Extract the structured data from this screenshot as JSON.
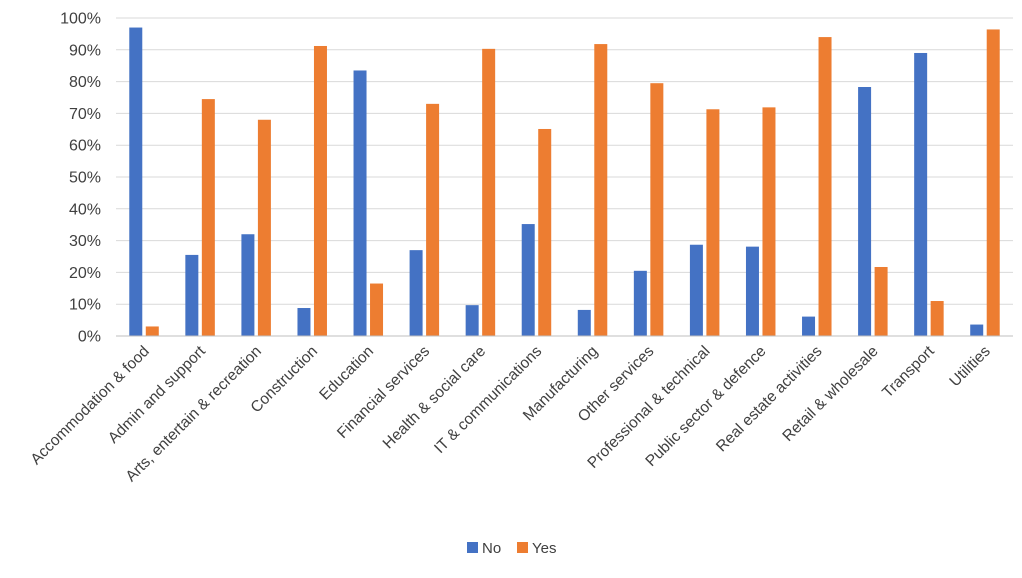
{
  "chart_data": {
    "type": "bar",
    "title": "",
    "xlabel": "",
    "ylabel": "",
    "ylim": [
      0,
      100
    ],
    "yticks": [
      0,
      10,
      20,
      30,
      40,
      50,
      60,
      70,
      80,
      90,
      100
    ],
    "ytick_labels": [
      "0%",
      "10%",
      "20%",
      "30%",
      "40%",
      "50%",
      "60%",
      "70%",
      "80%",
      "90%",
      "100%"
    ],
    "grid": true,
    "legend_position": "bottom",
    "categories": [
      "Accommodation & food",
      "Admin and support",
      "Arts, entertain & recreation",
      "Construction",
      "Education",
      "Financial services",
      "Health & social care",
      "IT & communications",
      "Manufacturing",
      "Other services",
      "Professional & technical",
      "Public sector & defence",
      "Real estate activities",
      "Retail & wholesale",
      "Transport",
      "Utilities"
    ],
    "series": [
      {
        "name": "No",
        "color": "#4472C4",
        "values": [
          97,
          25.5,
          32,
          8.8,
          83.5,
          27,
          9.7,
          35.2,
          8.2,
          20.5,
          28.7,
          28.1,
          6.1,
          78.3,
          89,
          3.6
        ]
      },
      {
        "name": "Yes",
        "color": "#ED7D31",
        "values": [
          3,
          74.5,
          68,
          91.2,
          16.5,
          73,
          90.3,
          65.1,
          91.8,
          79.5,
          71.3,
          71.9,
          94,
          21.7,
          11,
          96.4
        ]
      }
    ]
  }
}
